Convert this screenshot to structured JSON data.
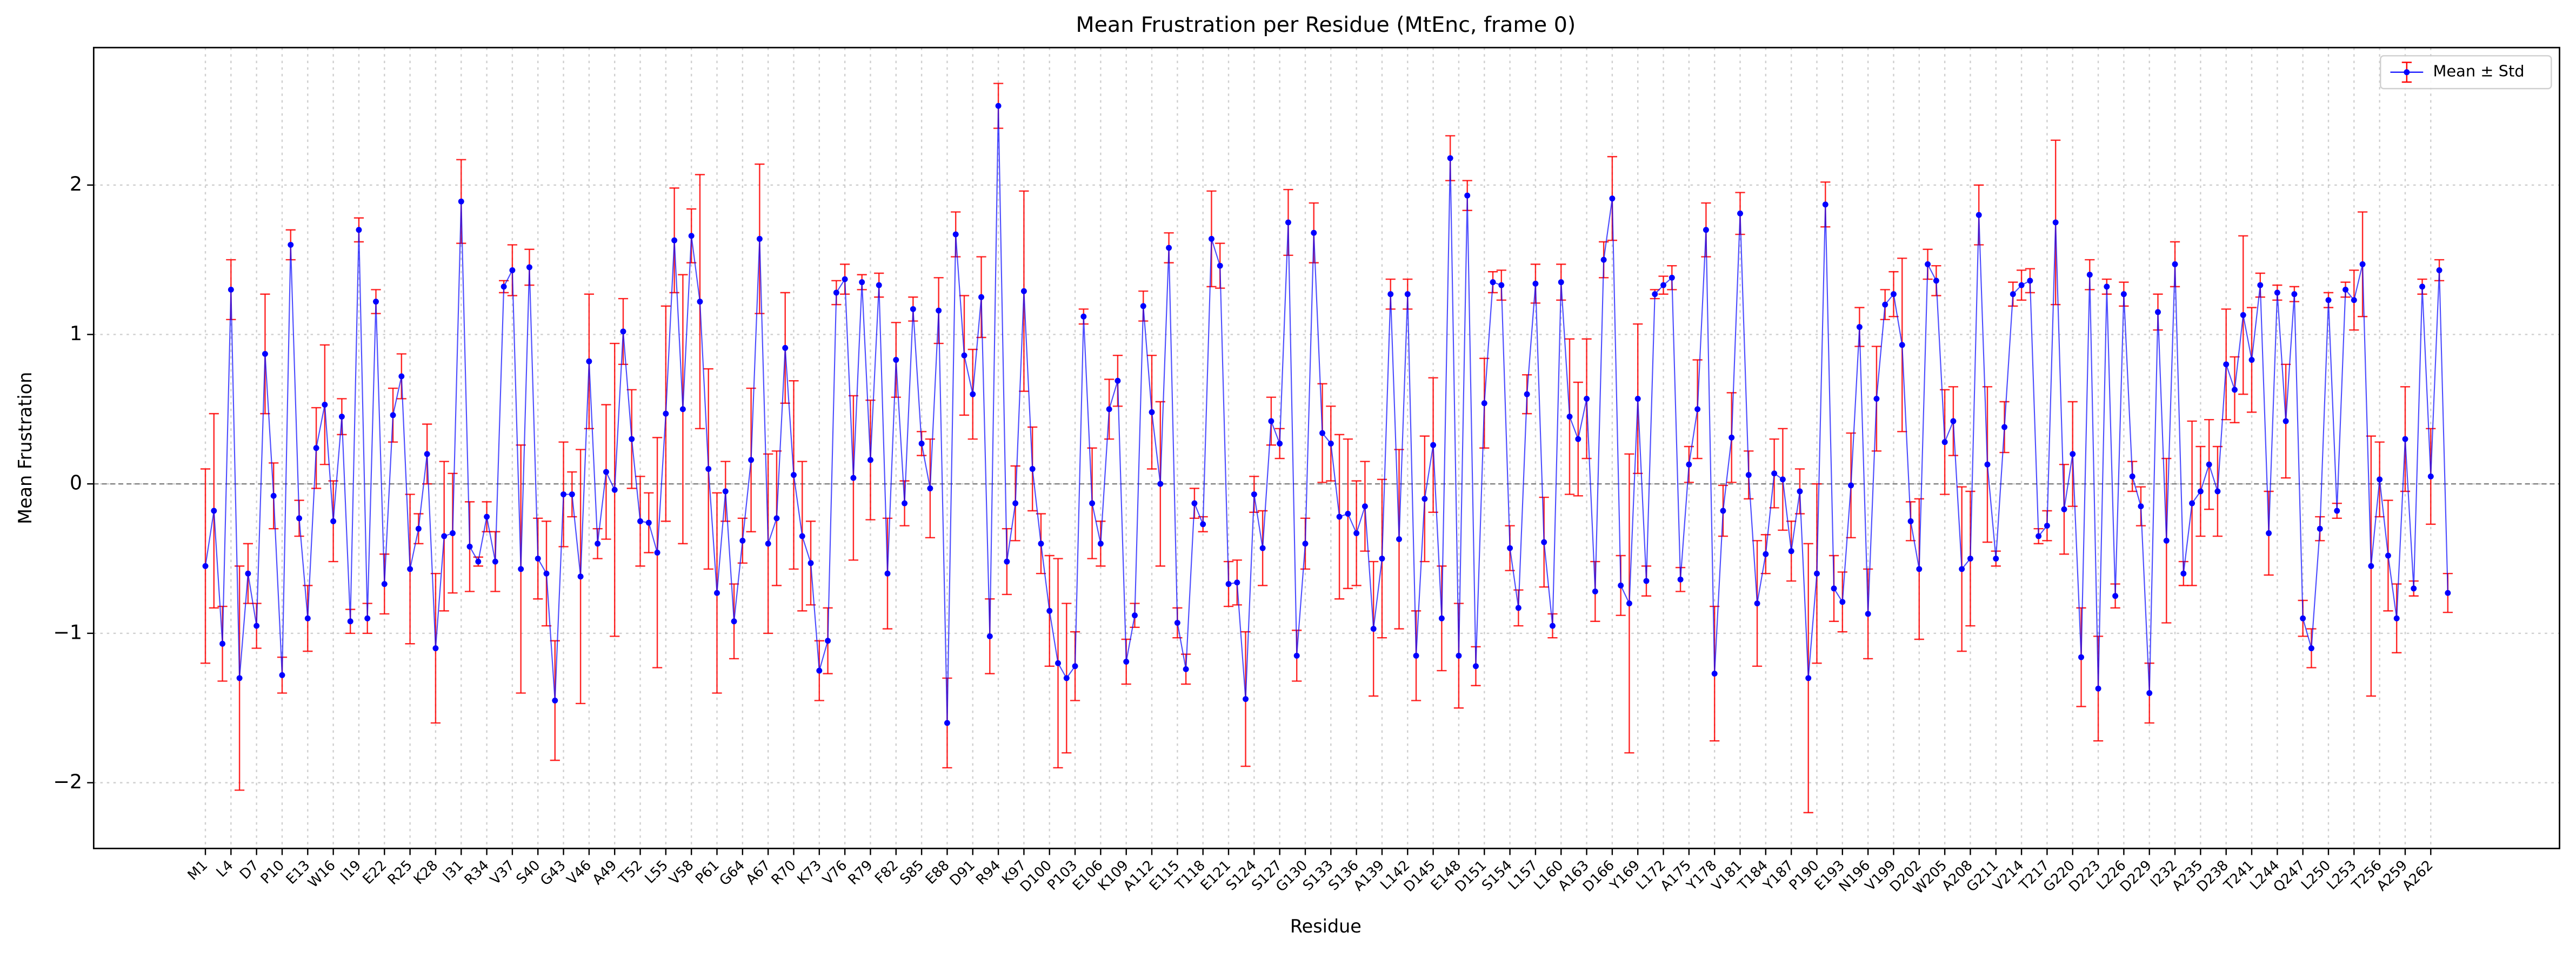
{
  "chart_data": {
    "type": "line",
    "title": "Mean Frustration per Residue (MtEnc, frame 0)",
    "xlabel": "Residue",
    "ylabel": "Mean Frustration",
    "categories": [
      "M1",
      null,
      null,
      "L4",
      null,
      null,
      "D7",
      null,
      null,
      "P10",
      null,
      null,
      "E13",
      null,
      null,
      "W16",
      null,
      null,
      "I19",
      null,
      null,
      "E22",
      null,
      null,
      "R25",
      null,
      null,
      "K28",
      null,
      null,
      "I31",
      null,
      null,
      "R34",
      null,
      null,
      "V37",
      null,
      null,
      "S40",
      null,
      null,
      "G43",
      null,
      null,
      "V46",
      null,
      null,
      "A49",
      null,
      null,
      "T52",
      null,
      null,
      "L55",
      null,
      null,
      "V58",
      null,
      null,
      "P61",
      null,
      null,
      "G64",
      null,
      null,
      "A67",
      null,
      null,
      "R70",
      null,
      null,
      "K73",
      null,
      null,
      "V76",
      null,
      null,
      "R79",
      null,
      null,
      "F82",
      null,
      null,
      "S85",
      null,
      null,
      "E88",
      null,
      null,
      "D91",
      null,
      null,
      "R94",
      null,
      null,
      "K97",
      null,
      null,
      "D100",
      null,
      null,
      "P103",
      null,
      null,
      "E106",
      null,
      null,
      "K109",
      null,
      null,
      "A112",
      null,
      null,
      "E115",
      null,
      null,
      "T118",
      null,
      null,
      "E121",
      null,
      null,
      "S124",
      null,
      null,
      "S127",
      null,
      null,
      "G130",
      null,
      null,
      "S133",
      null,
      null,
      "S136",
      null,
      null,
      "A139",
      null,
      null,
      "L142",
      null,
      null,
      "D145",
      null,
      null,
      "E148",
      null,
      null,
      "D151",
      null,
      null,
      "S154",
      null,
      null,
      "L157",
      null,
      null,
      "L160",
      null,
      null,
      "A163",
      null,
      null,
      "D166",
      null,
      null,
      "Y169",
      null,
      null,
      "L172",
      null,
      null,
      "A175",
      null,
      null,
      "Y178",
      null,
      null,
      "V181",
      null,
      null,
      "T184",
      null,
      null,
      "Y187",
      null,
      null,
      "P190",
      null,
      null,
      "E193",
      null,
      null,
      "N196",
      null,
      null,
      "V199",
      null,
      null,
      "D202",
      null,
      null,
      "W205",
      null,
      null,
      "A208",
      null,
      null,
      "G211",
      null,
      null,
      "V214",
      null,
      null,
      "T217",
      null,
      null,
      "G220",
      null,
      null,
      "D223",
      null,
      null,
      "L226",
      null,
      null,
      "D229",
      null,
      null,
      "I232",
      null,
      null,
      "A235",
      null,
      null,
      "D238",
      null,
      null,
      "T241",
      null,
      null,
      "L244",
      null,
      null,
      "Q247",
      null,
      null,
      "L250",
      null,
      null,
      "L253",
      null,
      null,
      "T256",
      null,
      null,
      "A259",
      null,
      null,
      "A262",
      null,
      null
    ],
    "series": [
      {
        "name": "Mean ± Std",
        "color": "#0000ff",
        "error_color": "#ff0000",
        "values": [
          -0.55,
          -0.18,
          -1.07,
          1.3,
          -1.3,
          -0.6,
          -0.95,
          0.87,
          -0.08,
          -1.28,
          1.6,
          -0.23,
          -0.9,
          0.24,
          0.53,
          -0.25,
          0.45,
          -0.92,
          1.7,
          -0.9,
          1.22,
          -0.67,
          0.46,
          0.72,
          -0.57,
          -0.3,
          0.2,
          -1.1,
          -0.35,
          -0.33,
          1.89,
          -0.42,
          -0.52,
          -0.22,
          -0.52,
          1.32,
          1.43,
          -0.57,
          1.45,
          -0.5,
          -0.6,
          -1.45,
          -0.07,
          -0.07,
          -0.62,
          0.82,
          -0.4,
          0.08,
          -0.04,
          1.02,
          0.3,
          -0.25,
          -0.26,
          -0.46,
          0.47,
          1.63,
          0.5,
          1.66,
          1.22,
          0.1,
          -0.73,
          -0.05,
          -0.92,
          -0.38,
          0.16,
          1.64,
          -0.4,
          -0.23,
          0.91,
          0.06,
          -0.35,
          -0.53,
          -1.25,
          -1.05,
          1.28,
          1.37,
          0.04,
          1.35,
          0.16,
          1.33,
          -0.6,
          0.83,
          -0.13,
          1.17,
          0.27,
          -0.03,
          1.16,
          -1.6,
          1.67,
          0.86,
          0.6,
          1.25,
          -1.02,
          2.53,
          -0.52,
          -0.13,
          1.29,
          0.1,
          -0.4,
          -0.85,
          -1.2,
          -1.3,
          -1.22,
          1.12,
          -0.13,
          -0.4,
          0.5,
          0.69,
          -1.19,
          -0.88,
          1.19,
          0.48,
          0.0,
          1.58,
          -0.93,
          -1.24,
          -0.13,
          -0.27,
          1.64,
          1.46,
          -0.67,
          -0.66,
          -1.44,
          -0.07,
          -0.43,
          0.42,
          0.27,
          1.75,
          -1.15,
          -0.4,
          1.68,
          0.34,
          0.27,
          -0.22,
          -0.2,
          -0.33,
          -0.15,
          -0.97,
          -0.5,
          1.27,
          -0.37,
          1.27,
          -1.15,
          -0.1,
          0.26,
          -0.9,
          2.18,
          -1.15,
          1.93,
          -1.22,
          0.54,
          1.35,
          1.33,
          -0.43,
          -0.83,
          0.6,
          1.34,
          -0.39,
          -0.95,
          1.35,
          0.45,
          0.3,
          0.57,
          -0.72,
          1.5,
          1.91,
          -0.68,
          -0.8,
          0.57,
          -0.65,
          1.27,
          1.33,
          1.38,
          -0.64,
          0.13,
          0.5,
          1.7,
          -1.27,
          -0.18,
          0.31,
          1.81,
          0.06,
          -0.8,
          -0.47,
          0.07,
          0.03,
          -0.45,
          -0.05,
          -1.3,
          -0.6,
          1.87,
          -0.7,
          -0.79,
          -0.01,
          1.05,
          -0.87,
          0.57,
          1.2,
          1.27,
          0.93,
          -0.25,
          -0.57,
          1.47,
          1.36,
          0.28,
          0.42,
          -0.57,
          -0.5,
          1.8,
          0.13,
          -0.5,
          0.38,
          1.27,
          1.33,
          1.36,
          -0.35,
          -0.28,
          1.75,
          -0.17,
          0.2,
          -1.16,
          1.4,
          -1.37,
          1.32,
          -0.75,
          1.27,
          0.05,
          -0.15,
          -1.4,
          1.15,
          -0.38,
          1.47,
          -0.6,
          -0.13,
          -0.05,
          0.13,
          -0.05,
          0.8,
          0.63,
          1.13,
          0.83,
          1.33,
          -0.33,
          1.28,
          0.42,
          1.27,
          -0.9,
          -1.1,
          -0.3,
          1.23,
          -0.18,
          1.3,
          1.23,
          1.47,
          -0.55,
          0.03,
          -0.48,
          -0.9,
          0.3,
          -0.7,
          1.32,
          0.05,
          1.43,
          -0.73
        ],
        "errors": [
          0.65,
          0.65,
          0.25,
          0.2,
          0.75,
          0.2,
          0.15,
          0.4,
          0.22,
          0.12,
          0.1,
          0.12,
          0.22,
          0.27,
          0.4,
          0.27,
          0.12,
          0.08,
          0.08,
          0.1,
          0.08,
          0.2,
          0.18,
          0.15,
          0.5,
          0.1,
          0.2,
          0.5,
          0.5,
          0.4,
          0.28,
          0.3,
          0.03,
          0.1,
          0.2,
          0.04,
          0.17,
          0.83,
          0.12,
          0.27,
          0.35,
          0.4,
          0.35,
          0.15,
          0.85,
          0.45,
          0.1,
          0.45,
          0.98,
          0.22,
          0.33,
          0.3,
          0.2,
          0.77,
          0.72,
          0.35,
          0.9,
          0.18,
          0.85,
          0.67,
          0.67,
          0.2,
          0.25,
          0.15,
          0.48,
          0.5,
          0.6,
          0.45,
          0.37,
          0.63,
          0.5,
          0.28,
          0.2,
          0.22,
          0.08,
          0.1,
          0.55,
          0.05,
          0.4,
          0.08,
          0.37,
          0.25,
          0.15,
          0.08,
          0.08,
          0.33,
          0.22,
          0.3,
          0.15,
          0.4,
          0.3,
          0.27,
          0.25,
          0.15,
          0.22,
          0.25,
          0.67,
          0.28,
          0.2,
          0.37,
          0.7,
          0.5,
          0.23,
          0.05,
          0.37,
          0.15,
          0.2,
          0.17,
          0.15,
          0.08,
          0.1,
          0.38,
          0.55,
          0.1,
          0.1,
          0.1,
          0.1,
          0.05,
          0.32,
          0.15,
          0.15,
          0.15,
          0.45,
          0.12,
          0.25,
          0.16,
          0.1,
          0.22,
          0.17,
          0.17,
          0.2,
          0.33,
          0.25,
          0.55,
          0.5,
          0.35,
          0.3,
          0.45,
          0.53,
          0.1,
          0.6,
          0.1,
          0.3,
          0.42,
          0.45,
          0.35,
          0.15,
          0.35,
          0.1,
          0.13,
          0.3,
          0.07,
          0.1,
          0.15,
          0.12,
          0.13,
          0.13,
          0.3,
          0.08,
          0.12,
          0.52,
          0.38,
          0.4,
          0.2,
          0.12,
          0.28,
          0.2,
          1.0,
          0.5,
          0.1,
          0.03,
          0.06,
          0.08,
          0.08,
          0.12,
          0.33,
          0.18,
          0.45,
          0.17,
          0.3,
          0.14,
          0.16,
          0.42,
          0.13,
          0.23,
          0.34,
          0.2,
          0.15,
          0.9,
          0.6,
          0.15,
          0.22,
          0.2,
          0.35,
          0.13,
          0.3,
          0.35,
          0.1,
          0.15,
          0.58,
          0.13,
          0.47,
          0.1,
          0.1,
          0.35,
          0.23,
          0.55,
          0.45,
          0.2,
          0.52,
          0.05,
          0.17,
          0.08,
          0.1,
          0.08,
          0.05,
          0.1,
          0.55,
          0.3,
          0.35,
          0.33,
          0.1,
          0.35,
          0.05,
          0.08,
          0.08,
          0.1,
          0.13,
          0.2,
          0.12,
          0.55,
          0.15,
          0.08,
          0.55,
          0.3,
          0.3,
          0.3,
          0.37,
          0.22,
          0.53,
          0.35,
          0.08,
          0.28,
          0.05,
          0.38,
          0.05,
          0.12,
          0.13,
          0.08,
          0.05,
          0.05,
          0.05,
          0.2,
          0.35,
          0.87,
          0.25,
          0.37,
          0.23,
          0.35,
          0.05,
          0.05,
          0.32,
          0.07,
          0.13
        ]
      }
    ],
    "ylim": [
      -2.44,
      2.92
    ],
    "yticks": [
      {
        "value": -2,
        "label": "−2"
      },
      {
        "value": -1,
        "label": "−1"
      },
      0,
      1,
      2
    ],
    "reference_line": 0,
    "grid": true,
    "legend": "upper right"
  }
}
